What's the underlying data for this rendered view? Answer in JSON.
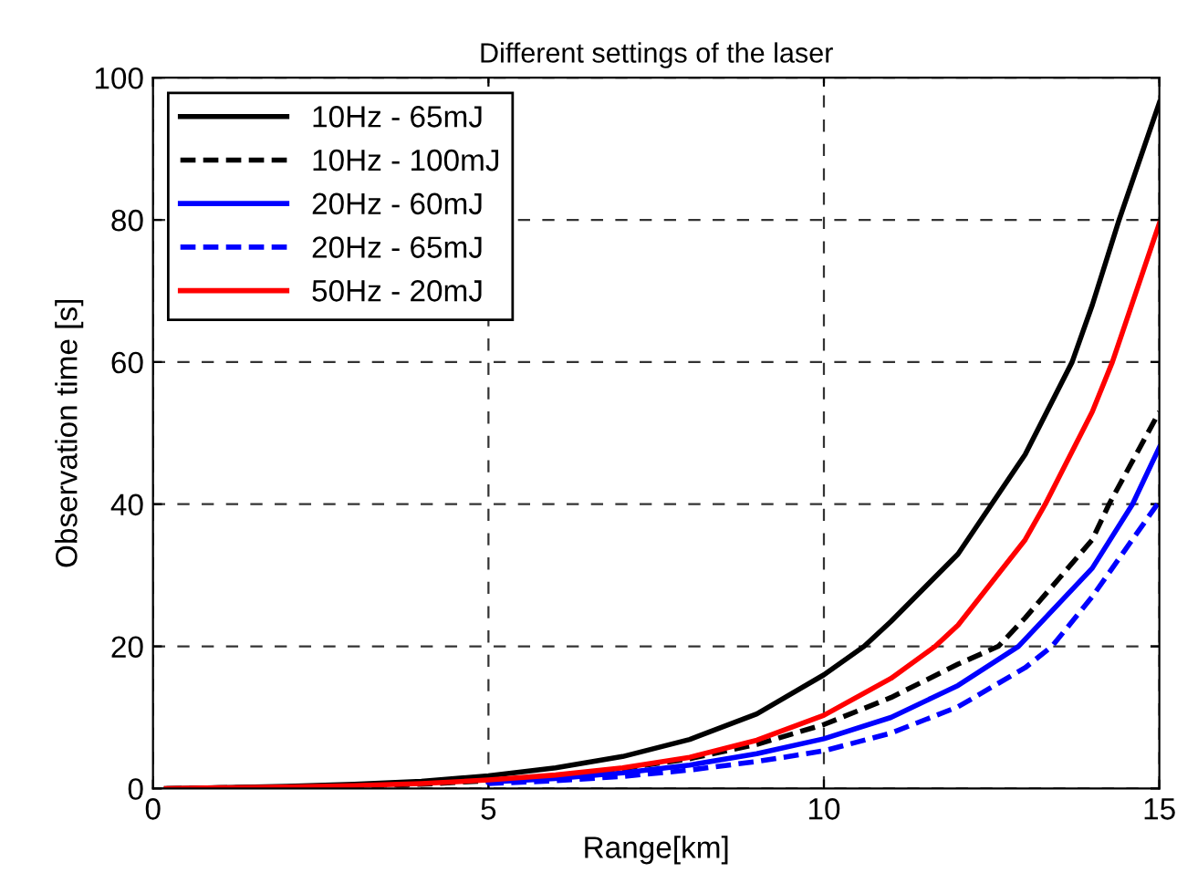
{
  "chart_data": {
    "type": "line",
    "title": "Different settings of the laser",
    "xlabel": "Range[km]",
    "ylabel": "Observation time [s]",
    "xlim": [
      0,
      15
    ],
    "xticks": [
      0,
      5,
      10,
      15
    ],
    "ylim": [
      0,
      100
    ],
    "yticks": [
      0,
      20,
      40,
      60,
      80,
      100
    ],
    "grid": true,
    "legend": "top left",
    "marker": "none",
    "series": [
      {
        "name": "10Hz - 65mJ",
        "color": "#000000",
        "line_style": "solid",
        "x": [
          0.2,
          1,
          2,
          3,
          4,
          5,
          6,
          7,
          8,
          9,
          10,
          10.6,
          11,
          12,
          12.5,
          13,
          13.7,
          14,
          14.4,
          15
        ],
        "values": [
          0,
          0.1,
          0.3,
          0.6,
          1.0,
          1.8,
          2.9,
          4.5,
          6.9,
          10.5,
          16,
          20,
          23.5,
          33,
          40,
          47,
          60,
          68,
          80,
          96.5
        ]
      },
      {
        "name": "10Hz - 100mJ",
        "color": "#000000",
        "line_style": "dashed",
        "x": [
          0.2,
          1,
          2,
          3,
          4,
          5,
          6,
          7,
          8,
          9,
          10,
          11,
          12,
          12.6,
          13,
          14,
          14.25,
          15
        ],
        "values": [
          0,
          0.1,
          0.2,
          0.4,
          0.6,
          1.1,
          1.8,
          2.8,
          4.2,
          6.2,
          9,
          12.8,
          17.5,
          20,
          24,
          35,
          40,
          53
        ]
      },
      {
        "name": "20Hz - 60mJ",
        "color": "#0000ff",
        "line_style": "solid",
        "x": [
          5,
          6,
          7,
          8,
          9,
          10,
          11,
          12,
          12.9,
          14,
          14.6,
          15
        ],
        "values": [
          0.9,
          1.4,
          2.2,
          3.3,
          4.9,
          7,
          10,
          14.5,
          20,
          31,
          40,
          48
        ]
      },
      {
        "name": "20Hz - 65mJ",
        "color": "#0000ff",
        "line_style": "dashed",
        "x": [
          5,
          6,
          7,
          8,
          9,
          10,
          11,
          12,
          13,
          13.4,
          14,
          15
        ],
        "values": [
          0.7,
          1.1,
          1.7,
          2.6,
          3.8,
          5.3,
          7.8,
          11.5,
          17,
          20,
          27,
          40.4
        ]
      },
      {
        "name": "50Hz - 20mJ",
        "color": "#ff0000",
        "line_style": "solid",
        "x": [
          0.2,
          1,
          2,
          3,
          4,
          5,
          6,
          7,
          8,
          9,
          10,
          11,
          11.66,
          12,
          13,
          13.3,
          14,
          14.3,
          15
        ],
        "values": [
          0,
          0.1,
          0.2,
          0.4,
          0.7,
          1.2,
          1.9,
          2.9,
          4.4,
          6.8,
          10.3,
          15.5,
          20,
          23,
          35,
          40,
          53,
          60,
          79.5
        ]
      }
    ]
  }
}
